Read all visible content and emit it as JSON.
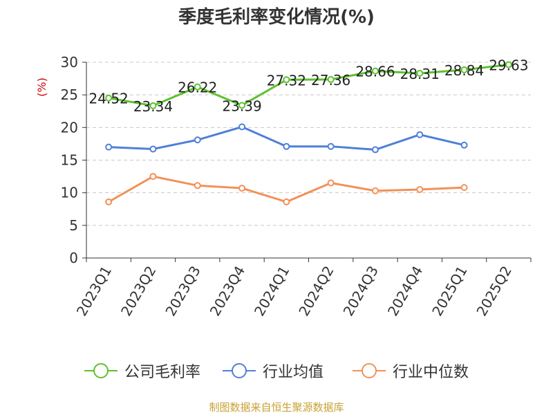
{
  "chart_data": {
    "type": "line",
    "title": "季度毛利率变化情况(%)",
    "ylabel": "(%)",
    "ylim": [
      0,
      30
    ],
    "yticks": [
      0,
      5,
      10,
      15,
      20,
      25,
      30
    ],
    "grid": true,
    "legend_position": "bottom",
    "categories": [
      "2023Q1",
      "2023Q2",
      "2023Q3",
      "2023Q4",
      "2024Q1",
      "2024Q2",
      "2024Q3",
      "2024Q4",
      "2025Q1",
      "2025Q2"
    ],
    "series": [
      {
        "name": "公司毛利率",
        "color": "#5cc12e",
        "show_labels": true,
        "values": [
          24.52,
          23.34,
          26.22,
          23.39,
          27.32,
          27.36,
          28.66,
          28.31,
          28.84,
          29.63
        ]
      },
      {
        "name": "行业均值",
        "color": "#4f7fd9",
        "show_labels": false,
        "values": [
          17.0,
          16.7,
          18.1,
          20.1,
          17.1,
          17.1,
          16.6,
          18.9,
          17.3,
          null
        ]
      },
      {
        "name": "行业中位数",
        "color": "#f39058",
        "show_labels": false,
        "values": [
          8.6,
          12.5,
          11.1,
          10.7,
          8.6,
          11.5,
          10.3,
          10.5,
          10.8,
          null
        ]
      }
    ]
  },
  "footer": "制图数据来自恒生聚源数据库"
}
